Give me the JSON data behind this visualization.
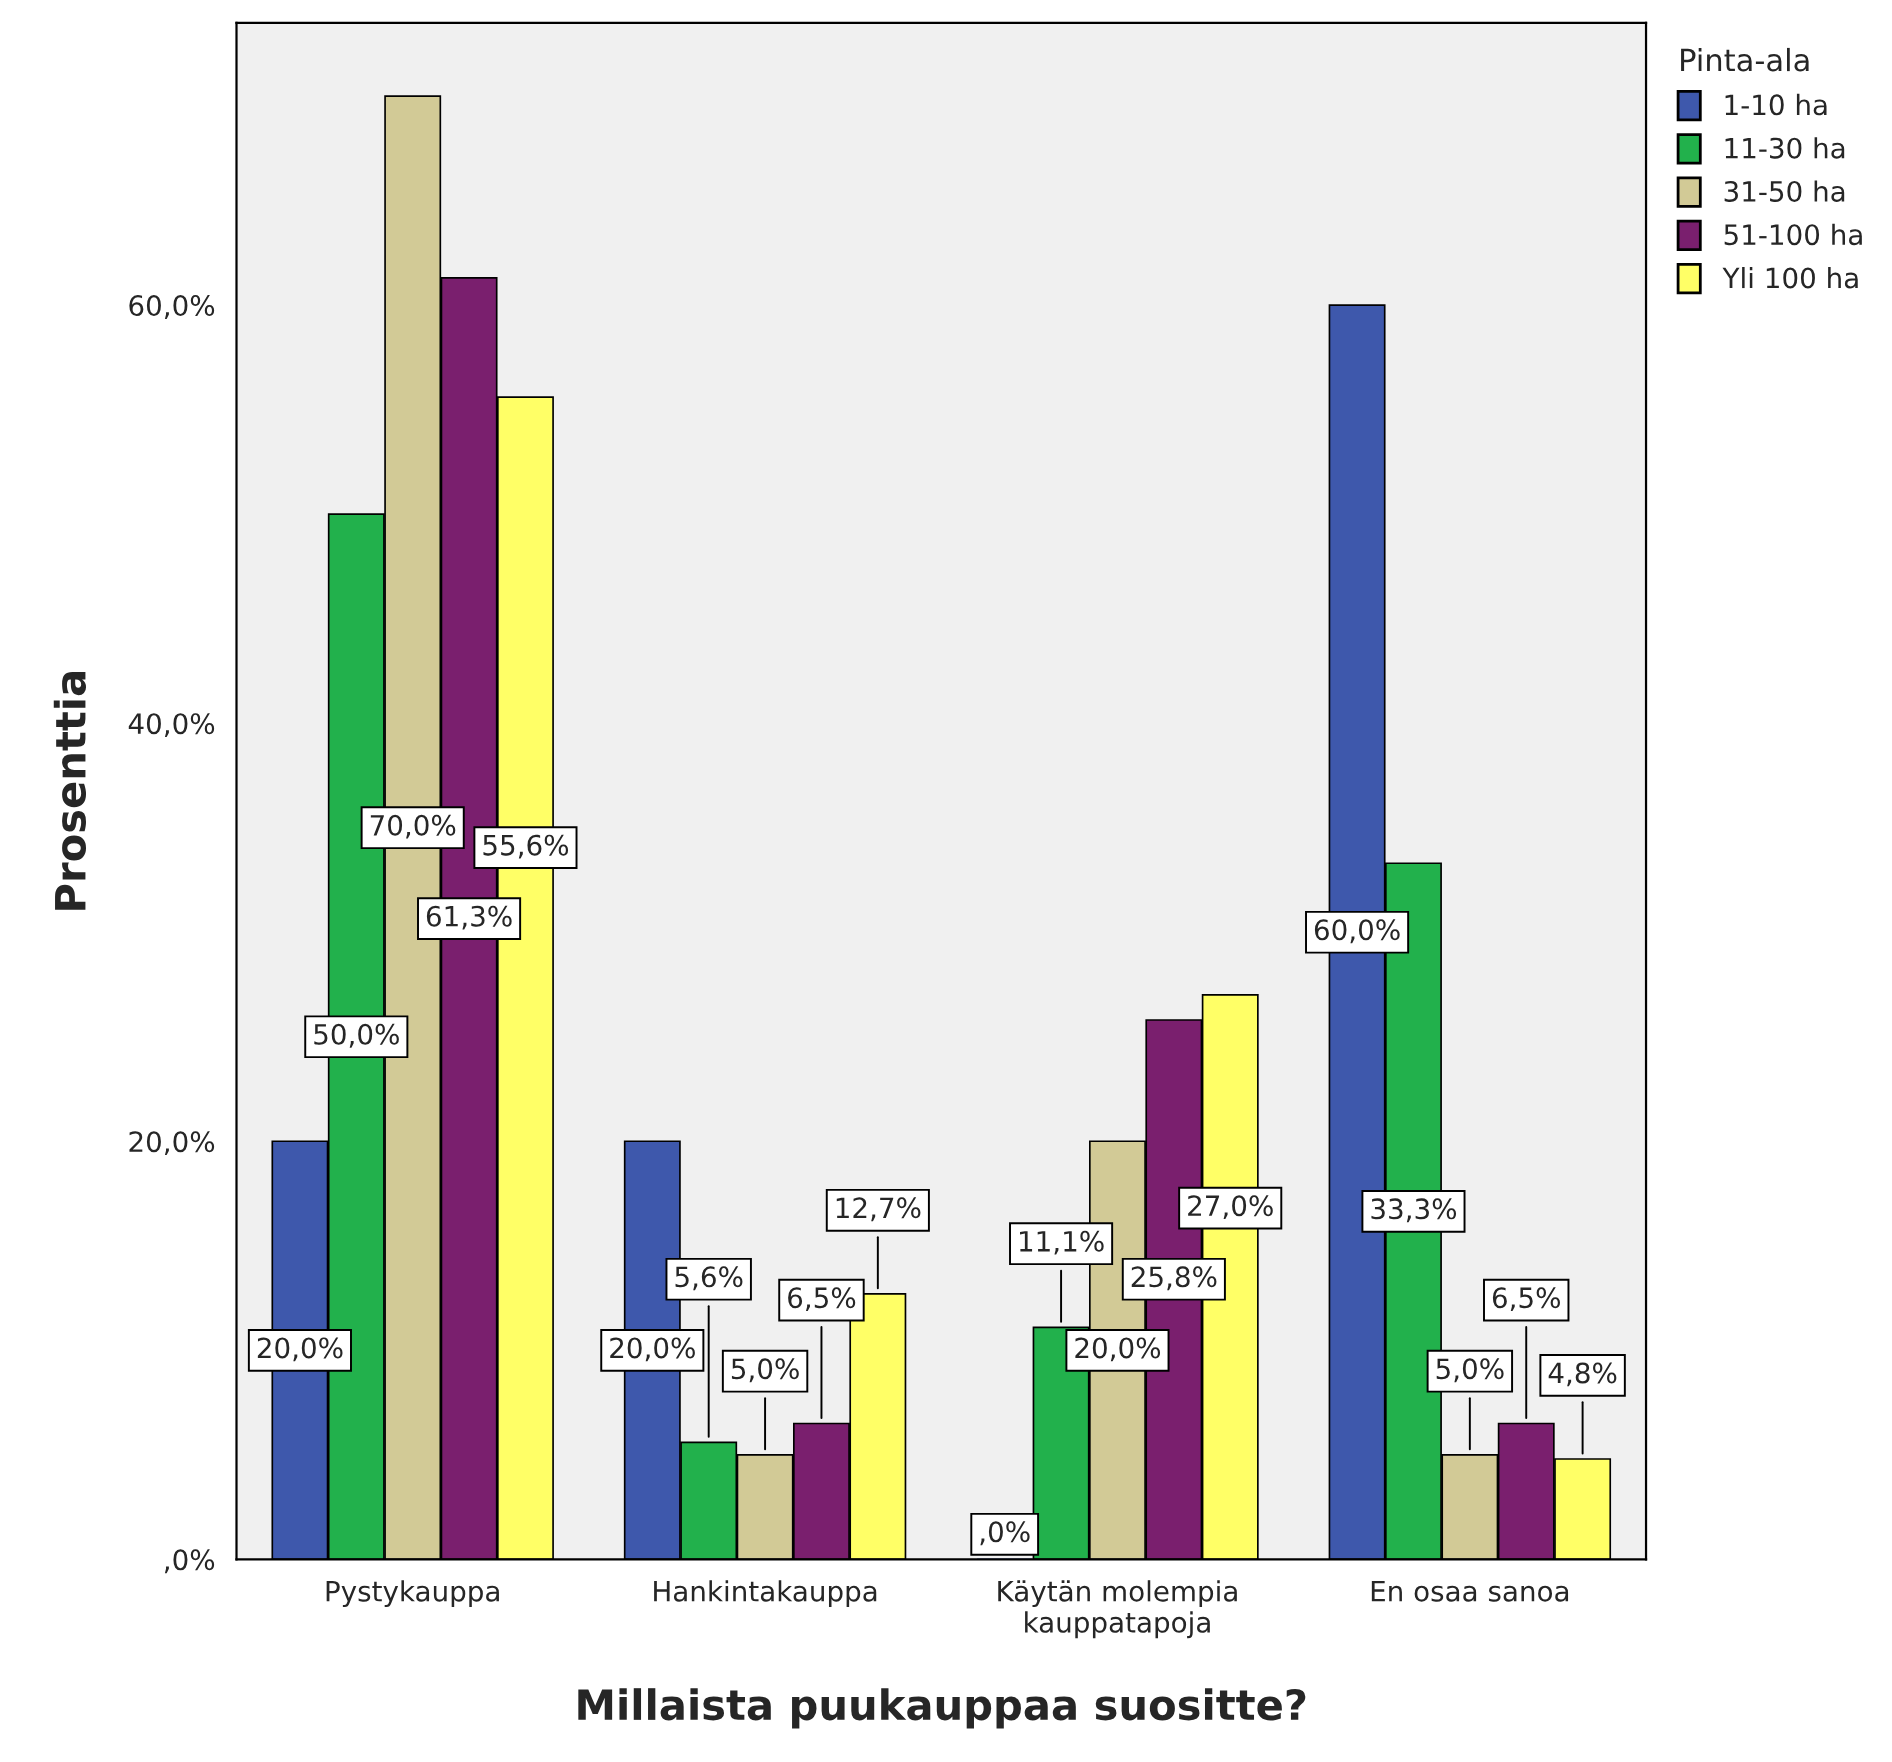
{
  "chart_data": {
    "type": "bar",
    "xlabel": "Millaista puukauppaa suositte?",
    "ylabel": "Prosenttia",
    "legend_title": "Pinta-ala",
    "legend": "right",
    "grid": false,
    "categories": [
      "Pystykauppa",
      "Hankintakauppa",
      "Käytän molempia\nkauppatapoja",
      "En osaa sanoa"
    ],
    "ylim": [
      0,
      73.5
    ],
    "yticks": [
      {
        "value": 0,
        "label": ",0%"
      },
      {
        "value": 20,
        "label": "20,0%"
      },
      {
        "value": 40,
        "label": "40,0%"
      },
      {
        "value": 60,
        "label": "60,0%"
      }
    ],
    "series": [
      {
        "name": "1-10 ha",
        "color": "#3e58ac",
        "values": [
          20.0,
          20.0,
          0.0,
          60.0
        ],
        "value_labels": [
          "20,0%",
          "20,0%",
          ",0%",
          "60,0%"
        ]
      },
      {
        "name": "11-30 ha",
        "color": "#22b14c",
        "values": [
          50.0,
          5.6,
          11.1,
          33.3
        ],
        "value_labels": [
          "50,0%",
          "5,6%",
          "11,1%",
          "33,3%"
        ]
      },
      {
        "name": "31-50 ha",
        "color": "#d2ca96",
        "values": [
          70.0,
          5.0,
          20.0,
          5.0
        ],
        "value_labels": [
          "70,0%",
          "5,0%",
          "20,0%",
          "5,0%"
        ]
      },
      {
        "name": "51-100 ha",
        "color": "#7a1f6e",
        "values": [
          61.3,
          6.5,
          25.8,
          6.5
        ],
        "value_labels": [
          "61,3%",
          "6,5%",
          "25,8%",
          "6,5%"
        ]
      },
      {
        "name": "Yli 100 ha",
        "color": "#ffff66",
        "values": [
          55.6,
          12.7,
          27.0,
          4.8
        ],
        "value_labels": [
          "55,6%",
          "12,7%",
          "27,0%",
          "4,8%"
        ]
      }
    ]
  }
}
